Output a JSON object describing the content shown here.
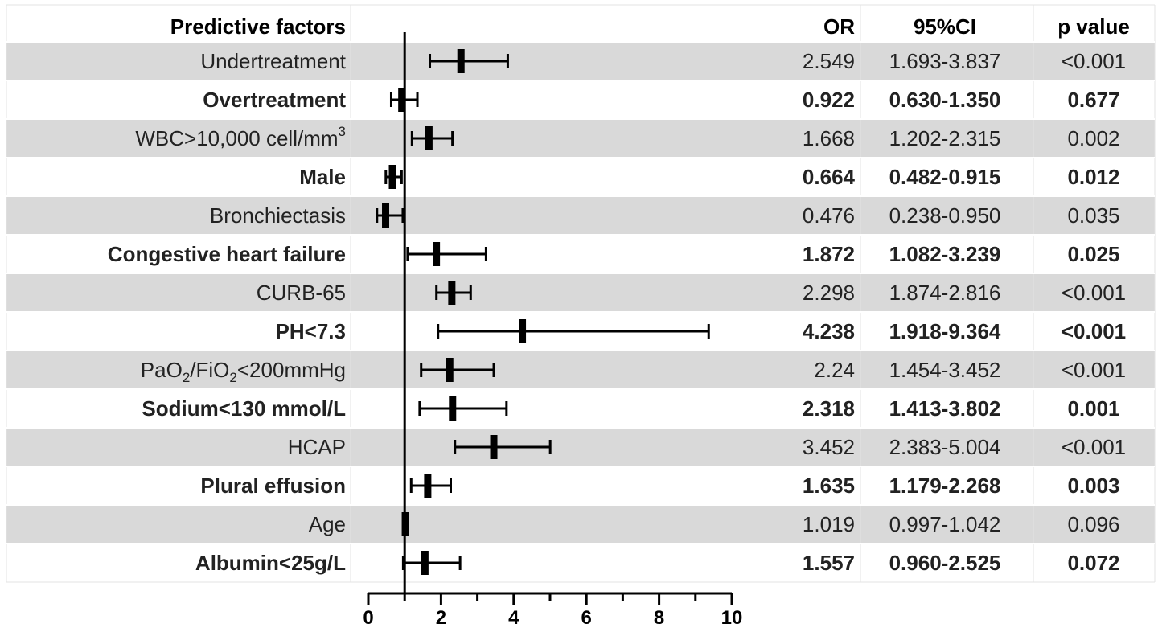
{
  "chart_data": {
    "type": "forest",
    "title": "",
    "headers": {
      "factor": "Predictive factors",
      "or": "OR",
      "ci": "95%CI",
      "p": "p value"
    },
    "x_ticks": [
      "0",
      "2",
      "4",
      "6",
      "8",
      "10"
    ],
    "xlim": [
      0,
      10
    ],
    "reference_line": 1,
    "rows": [
      {
        "label_main": "Undertreatment",
        "label_sub": "",
        "label_tail": "",
        "label_sup": "",
        "or": 2.549,
        "lo": 1.693,
        "hi": 3.837,
        "or_text": "2.549",
        "ci_text": "1.693-3.837",
        "p_text": "<0.001",
        "bold": false,
        "shaded": true
      },
      {
        "label_main": "Overtreatment",
        "label_sub": "",
        "label_tail": "",
        "label_sup": "",
        "or": 0.922,
        "lo": 0.63,
        "hi": 1.35,
        "or_text": "0.922",
        "ci_text": "0.630-1.350",
        "p_text": "0.677",
        "bold": true,
        "shaded": false
      },
      {
        "label_main": "WBC>10,000 cell/mm",
        "label_sub": "",
        "label_tail": "",
        "label_sup": "3",
        "or": 1.668,
        "lo": 1.202,
        "hi": 2.315,
        "or_text": "1.668",
        "ci_text": "1.202-2.315",
        "p_text": "0.002",
        "bold": false,
        "shaded": true
      },
      {
        "label_main": "Male",
        "label_sub": "",
        "label_tail": "",
        "label_sup": "",
        "or": 0.664,
        "lo": 0.482,
        "hi": 0.915,
        "or_text": "0.664",
        "ci_text": "0.482-0.915",
        "p_text": "0.012",
        "bold": true,
        "shaded": false
      },
      {
        "label_main": "Bronchiectasis",
        "label_sub": "",
        "label_tail": "",
        "label_sup": "",
        "or": 0.476,
        "lo": 0.238,
        "hi": 0.95,
        "or_text": "0.476",
        "ci_text": "0.238-0.950",
        "p_text": "0.035",
        "bold": false,
        "shaded": true
      },
      {
        "label_main": "Congestive heart failure",
        "label_sub": "",
        "label_tail": "",
        "label_sup": "",
        "or": 1.872,
        "lo": 1.082,
        "hi": 3.239,
        "or_text": "1.872",
        "ci_text": "1.082-3.239",
        "p_text": "0.025",
        "bold": true,
        "shaded": false
      },
      {
        "label_main": "CURB-65",
        "label_sub": "",
        "label_tail": "",
        "label_sup": "",
        "or": 2.298,
        "lo": 1.874,
        "hi": 2.816,
        "or_text": "2.298",
        "ci_text": "1.874-2.816",
        "p_text": "<0.001",
        "bold": false,
        "shaded": true
      },
      {
        "label_main": "PH<7.3",
        "label_sub": "",
        "label_tail": "",
        "label_sup": "",
        "or": 4.238,
        "lo": 1.918,
        "hi": 9.364,
        "or_text": "4.238",
        "ci_text": "1.918-9.364",
        "p_text": "<0.001",
        "bold": true,
        "shaded": false
      },
      {
        "label_main": "PaO",
        "label_sub": "2",
        "label_tail": "/FiO",
        "label_sub2": "2",
        "label_tail2": "<200mmHg",
        "label_sup": "",
        "or": 2.24,
        "lo": 1.454,
        "hi": 3.452,
        "or_text": "2.24",
        "ci_text": "1.454-3.452",
        "p_text": "<0.001",
        "bold": false,
        "shaded": true
      },
      {
        "label_main": "Sodium<130 mmol/L",
        "label_sub": "",
        "label_tail": "",
        "label_sup": "",
        "or": 2.318,
        "lo": 1.413,
        "hi": 3.802,
        "or_text": "2.318",
        "ci_text": "1.413-3.802",
        "p_text": "0.001",
        "bold": true,
        "shaded": false
      },
      {
        "label_main": "HCAP",
        "label_sub": "",
        "label_tail": "",
        "label_sup": "",
        "or": 3.452,
        "lo": 2.383,
        "hi": 5.004,
        "or_text": "3.452",
        "ci_text": "2.383-5.004",
        "p_text": "<0.001",
        "bold": false,
        "shaded": true
      },
      {
        "label_main": "Plural effusion",
        "label_sub": "",
        "label_tail": "",
        "label_sup": "",
        "or": 1.635,
        "lo": 1.179,
        "hi": 2.268,
        "or_text": "1.635",
        "ci_text": "1.179-2.268",
        "p_text": "0.003",
        "bold": true,
        "shaded": false
      },
      {
        "label_main": "Age",
        "label_sub": "",
        "label_tail": "",
        "label_sup": "",
        "or": 1.019,
        "lo": 0.997,
        "hi": 1.042,
        "or_text": "1.019",
        "ci_text": "0.997-1.042",
        "p_text": "0.096",
        "bold": false,
        "shaded": true
      },
      {
        "label_main": "Albumin<25g/L",
        "label_sub": "",
        "label_tail": "",
        "label_sup": "",
        "or": 1.557,
        "lo": 0.96,
        "hi": 2.525,
        "or_text": "1.557",
        "ci_text": "0.960-2.525",
        "p_text": "0.072",
        "bold": true,
        "shaded": false
      }
    ]
  },
  "colors": {
    "shade": "#d9d9d9",
    "grid": "#e3e3e3",
    "ink": "#000000",
    "text": "#222222"
  }
}
